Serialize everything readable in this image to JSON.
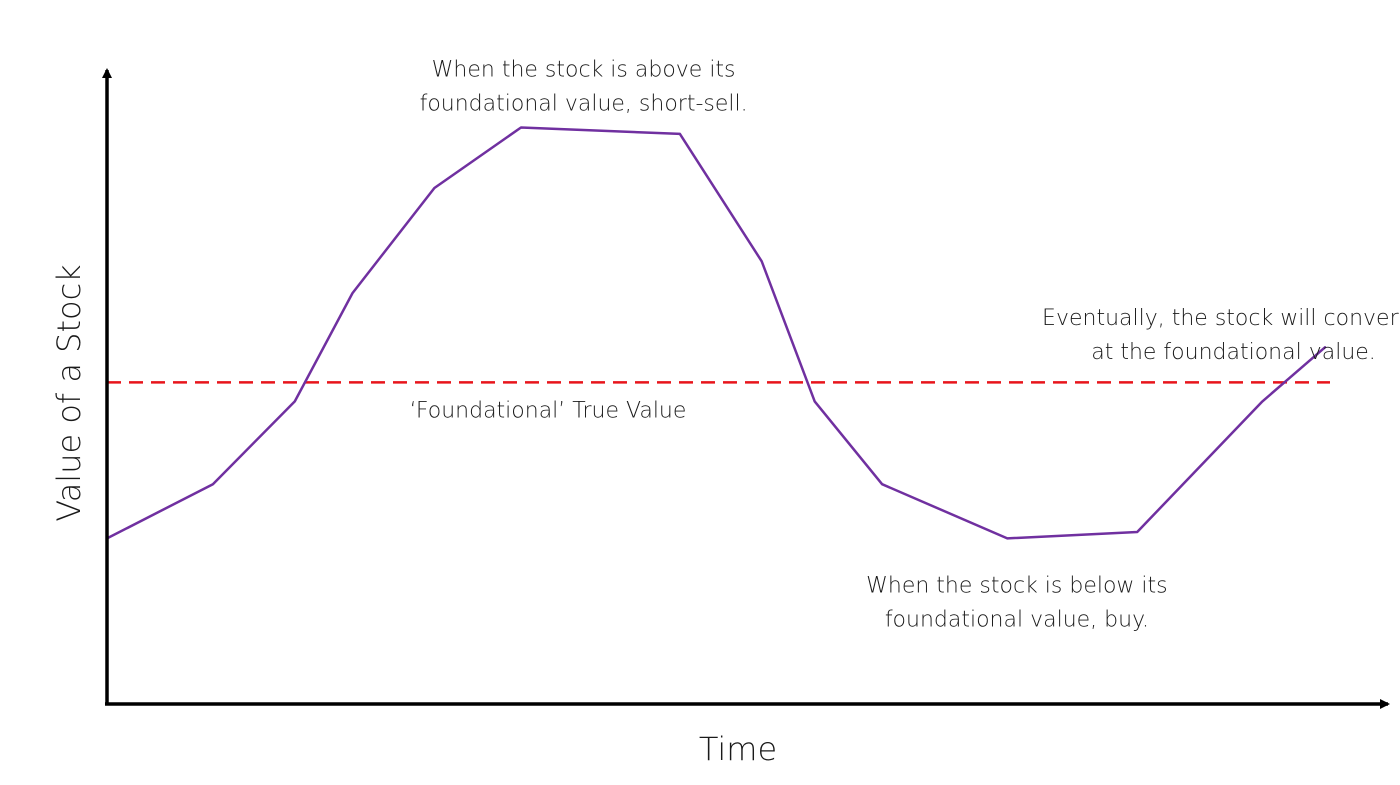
{
  "chart_data": {
    "type": "line",
    "title": "",
    "xlabel": "Time",
    "ylabel": "Value of a Stock",
    "xlim": [
      0,
      13.2
    ],
    "ylim": [
      0,
      10
    ],
    "grid": false,
    "x_ticks_shown": false,
    "y_ticks_shown": false,
    "series": [
      {
        "color": "#7030a0",
        "x": [
          0,
          1.1,
          1.95,
          2.55,
          3.4,
          4.3,
          5.95,
          6.8,
          7.35,
          8.05,
          9.35,
          10.7,
          12.0,
          12.65
        ],
        "y": [
          2.6,
          3.45,
          4.75,
          6.45,
          8.1,
          9.05,
          8.95,
          6.95,
          4.75,
          3.45,
          2.6,
          2.7,
          4.75,
          5.6
        ]
      }
    ],
    "reference_lines": [
      {
        "label": "‘Foundational’ True Value",
        "y": 5.05,
        "style": "dashed",
        "color": "#e8141b"
      }
    ],
    "annotations": [
      {
        "lines": [
          "When the stock is above its",
          "foundational value, short-sell."
        ],
        "x": 4.95,
        "y": 9.85
      },
      {
        "lines": [
          "When the stock is below its",
          "foundational value, buy."
        ],
        "x": 9.45,
        "y": 1.75
      },
      {
        "lines": [
          "Eventually, the stock will converge",
          "at the foundational value."
        ],
        "x": 11.7,
        "y": 5.95
      }
    ]
  }
}
